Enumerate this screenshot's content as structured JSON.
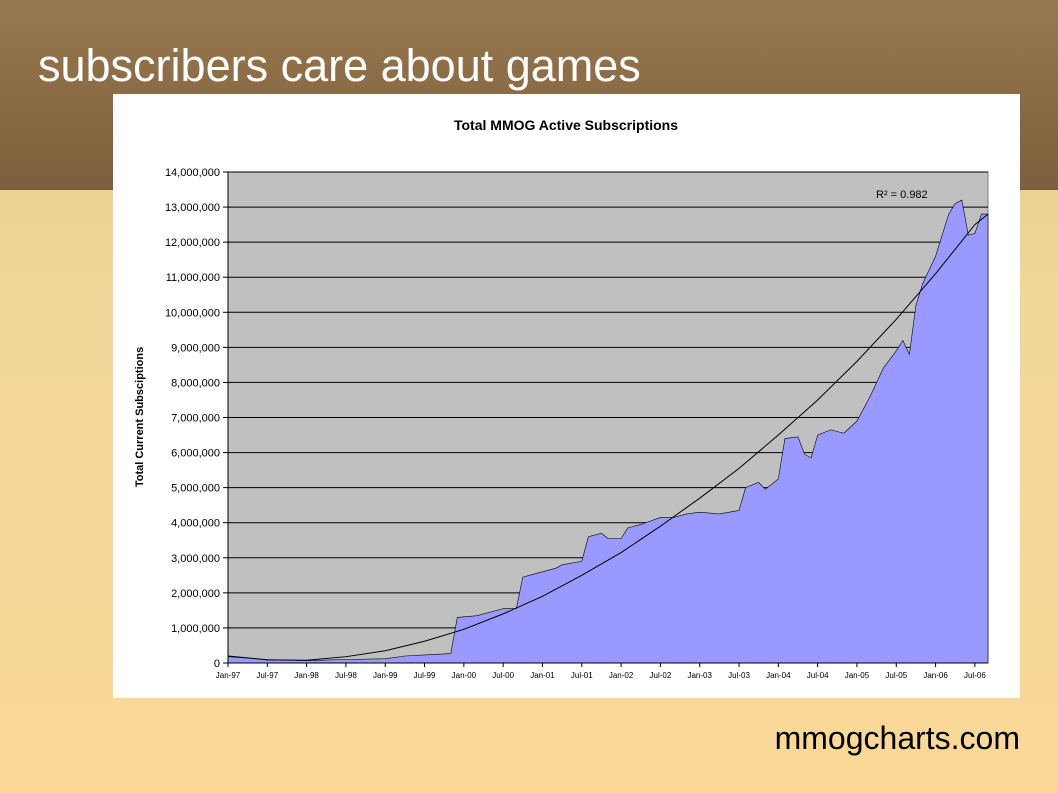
{
  "slide": {
    "title": "subscribers care about games",
    "source": "mmogcharts.com"
  },
  "colors": {
    "header": "#8a6a44",
    "background": "#fbd896",
    "plot_area": "#c0c0c0",
    "area_fill": "#9999ff"
  },
  "chart_data": {
    "type": "area",
    "title": "Total MMOG Active Subscriptions",
    "xlabel": "",
    "ylabel": "Total Current Subsciptions",
    "ylim": [
      0,
      14000000
    ],
    "yticks": [
      0,
      1000000,
      2000000,
      3000000,
      4000000,
      5000000,
      6000000,
      7000000,
      8000000,
      9000000,
      10000000,
      11000000,
      12000000,
      13000000,
      14000000
    ],
    "ytick_labels": [
      "0",
      "1,000,000",
      "2,000,000",
      "3,000,000",
      "4,000,000",
      "5,000,000",
      "6,000,000",
      "7,000,000",
      "8,000,000",
      "9,000,000",
      "10,000,000",
      "11,000,000",
      "12,000,000",
      "13,000,000",
      "14,000,000"
    ],
    "xtick_labels": [
      "Jan-97",
      "Jul-97",
      "Jan-98",
      "Jul-98",
      "Jan-99",
      "Jul-99",
      "Jan-00",
      "Jul-00",
      "Jan-01",
      "Jul-01",
      "Jan-02",
      "Jul-02",
      "Jan-03",
      "Jul-03",
      "Jan-04",
      "Jul-04",
      "Jan-05",
      "Jul-05",
      "Jan-06",
      "Jul-06"
    ],
    "grid": true,
    "legend": "none",
    "annotation": "R² = 0.982",
    "series": [
      {
        "values": [
          [
            "Jan-97",
            180000
          ],
          [
            "Jul-97",
            100000
          ],
          [
            "Jan-98",
            70000
          ],
          [
            "Jul-98",
            100000
          ],
          [
            "Jan-99",
            120000
          ],
          [
            "Apr-99",
            200000
          ],
          [
            "Jul-99",
            230000
          ],
          [
            "Nov-99",
            270000
          ],
          [
            "Dec-99",
            1300000
          ],
          [
            "Mar-00",
            1350000
          ],
          [
            "Jul-00",
            1550000
          ],
          [
            "Sep-00",
            1550000
          ],
          [
            "Oct-00",
            2450000
          ],
          [
            "Dec-00",
            2550000
          ],
          [
            "Jan-01",
            2600000
          ],
          [
            "Mar-01",
            2700000
          ],
          [
            "Apr-01",
            2800000
          ],
          [
            "Jul-01",
            2900000
          ],
          [
            "Aug-01",
            3600000
          ],
          [
            "Oct-01",
            3700000
          ],
          [
            "Nov-01",
            3550000
          ],
          [
            "Jan-02",
            3550000
          ],
          [
            "Feb-02",
            3850000
          ],
          [
            "Apr-02",
            3950000
          ],
          [
            "Jul-02",
            4150000
          ],
          [
            "Sep-02",
            4150000
          ],
          [
            "Nov-02",
            4250000
          ],
          [
            "Jan-03",
            4300000
          ],
          [
            "Apr-03",
            4250000
          ],
          [
            "Jul-03",
            4350000
          ],
          [
            "Aug-03",
            5000000
          ],
          [
            "Oct-03",
            5150000
          ],
          [
            "Nov-03",
            4950000
          ],
          [
            "Jan-04",
            5250000
          ],
          [
            "Feb-04",
            6400000
          ],
          [
            "Apr-04",
            6450000
          ],
          [
            "May-04",
            5950000
          ],
          [
            "Jun-04",
            5850000
          ],
          [
            "Jul-04",
            6500000
          ],
          [
            "Sep-04",
            6650000
          ],
          [
            "Nov-04",
            6550000
          ],
          [
            "Jan-05",
            6900000
          ],
          [
            "Mar-05",
            7600000
          ],
          [
            "May-05",
            8400000
          ],
          [
            "Jul-05",
            8900000
          ],
          [
            "Aug-05",
            9200000
          ],
          [
            "Sep-05",
            8800000
          ],
          [
            "Oct-05",
            10200000
          ],
          [
            "Nov-05",
            10800000
          ],
          [
            "Jan-06",
            11600000
          ],
          [
            "Mar-06",
            12800000
          ],
          [
            "Apr-06",
            13100000
          ],
          [
            "May-06",
            13200000
          ],
          [
            "Jun-06",
            12200000
          ],
          [
            "Jul-06",
            12250000
          ],
          [
            "Aug-06",
            12800000
          ],
          [
            "Sep-06",
            12800000
          ]
        ]
      }
    ],
    "trendline": {
      "type": "polynomial",
      "values": [
        [
          "Jan-97",
          200000
        ],
        [
          "Jul-97",
          90000
        ],
        [
          "Jan-98",
          80000
        ],
        [
          "Jul-98",
          180000
        ],
        [
          "Jan-99",
          350000
        ],
        [
          "Jul-99",
          620000
        ],
        [
          "Jan-00",
          960000
        ],
        [
          "Jul-00",
          1400000
        ],
        [
          "Jan-01",
          1900000
        ],
        [
          "Jul-01",
          2500000
        ],
        [
          "Jan-02",
          3150000
        ],
        [
          "Jul-02",
          3900000
        ],
        [
          "Jan-03",
          4700000
        ],
        [
          "Jul-03",
          5550000
        ],
        [
          "Jan-04",
          6500000
        ],
        [
          "Jul-04",
          7500000
        ],
        [
          "Jan-05",
          8600000
        ],
        [
          "Jul-05",
          9800000
        ],
        [
          "Jan-06",
          11100000
        ],
        [
          "Jul-06",
          12500000
        ],
        [
          "Sep-06",
          12800000
        ]
      ]
    }
  }
}
